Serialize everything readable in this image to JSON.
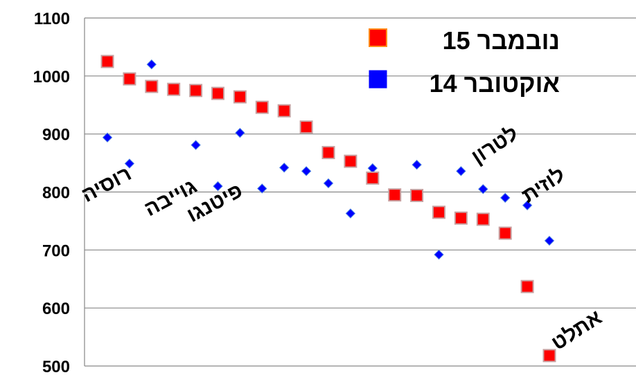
{
  "chart_data": {
    "type": "scatter",
    "title": "",
    "xlabel": "",
    "ylabel": "",
    "ylim": [
      500,
      1100
    ],
    "yticks": [
      500,
      600,
      700,
      800,
      900,
      1000,
      1100
    ],
    "x": [
      1,
      2,
      3,
      4,
      5,
      6,
      7,
      8,
      9,
      10,
      11,
      12,
      13,
      14,
      15,
      16,
      17,
      18,
      19,
      20,
      21
    ],
    "series": [
      {
        "name": "נובמבר 15",
        "color": "#ff0000",
        "marker": "square",
        "values": [
          1025,
          995,
          982,
          977,
          975,
          970,
          964,
          946,
          940,
          912,
          868,
          853,
          824,
          795,
          794,
          765,
          755,
          753,
          729,
          637,
          518
        ]
      },
      {
        "name": "אוקטובר 14",
        "color": "#0000ff",
        "marker": "diamond",
        "values": [
          894,
          849,
          1020,
          null,
          881,
          810,
          902,
          806,
          842,
          836,
          815,
          763,
          841,
          null,
          847,
          692,
          836,
          805,
          790,
          777,
          716
        ]
      }
    ],
    "annotations": [
      {
        "text": "רוסיה",
        "x": 1.1,
        "y": 803,
        "rotate": -28
      },
      {
        "text": "גוייבה",
        "x": 4.0,
        "y": 780,
        "rotate": -28
      },
      {
        "text": "פיטנגו",
        "x": 6.0,
        "y": 771,
        "rotate": -28
      },
      {
        "text": "לטרון",
        "x": 18.7,
        "y": 871,
        "rotate": -33
      },
      {
        "text": "לוזית",
        "x": 20.9,
        "y": 802,
        "rotate": -33
      },
      {
        "text": "אתלט",
        "x": 22.4,
        "y": 552,
        "rotate": -33
      }
    ],
    "grid": true,
    "legend_position": "top-right"
  }
}
